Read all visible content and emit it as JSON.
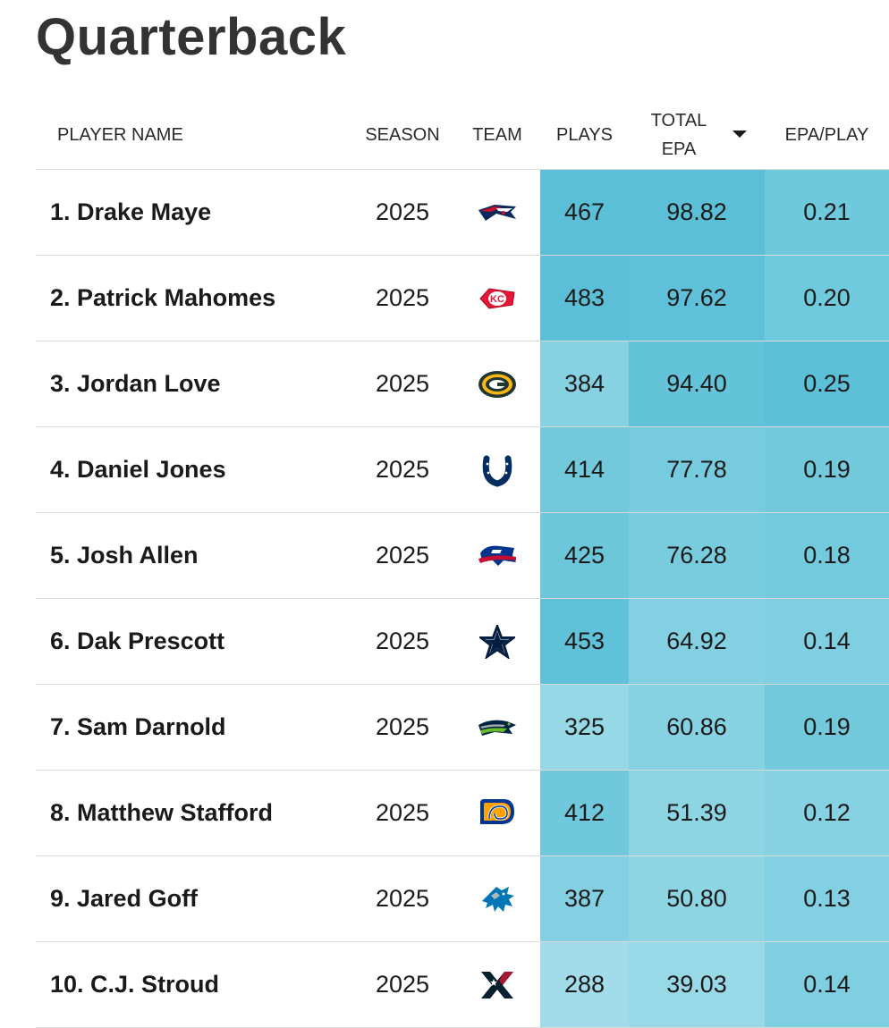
{
  "page_title": "Quarterback",
  "columns": {
    "player_name": "PLAYER NAME",
    "season": "SEASON",
    "team": "TEAM",
    "plays": "PLAYS",
    "total_epa_line1": "TOTAL",
    "total_epa_line2": "EPA",
    "epa_per_play": "EPA/PLAY"
  },
  "sort": {
    "column": "total_epa",
    "direction": "descending",
    "icon": "caret-down-icon"
  },
  "rows": [
    {
      "name": "1. Drake Maye",
      "season": "2025",
      "team_logo": "patriots-logo",
      "plays": "467",
      "total_epa": "98.82",
      "epa_per_play": "0.21",
      "colors": {
        "plays": "#5bbfd8",
        "total_epa": "#5bbfd8",
        "epa_per_play": "#6ec9dc"
      }
    },
    {
      "name": "2. Patrick Mahomes",
      "season": "2025",
      "team_logo": "chiefs-logo",
      "plays": "483",
      "total_epa": "97.62",
      "epa_per_play": "0.20",
      "colors": {
        "plays": "#5bbfd8",
        "total_epa": "#5ec1d9",
        "epa_per_play": "#6fcadd"
      }
    },
    {
      "name": "3. Jordan Love",
      "season": "2025",
      "team_logo": "packers-logo",
      "plays": "384",
      "total_epa": "94.40",
      "epa_per_play": "0.25",
      "colors": {
        "plays": "#86d2e2",
        "total_epa": "#62c3d9",
        "epa_per_play": "#5cc0d8"
      }
    },
    {
      "name": "4. Daniel Jones",
      "season": "2025",
      "team_logo": "colts-logo",
      "plays": "414",
      "total_epa": "77.78",
      "epa_per_play": "0.19",
      "colors": {
        "plays": "#72c9dc",
        "total_epa": "#76cbde",
        "epa_per_play": "#72c9dc"
      }
    },
    {
      "name": "5. Josh Allen",
      "season": "2025",
      "team_logo": "bills-logo",
      "plays": "425",
      "total_epa": "76.28",
      "epa_per_play": "0.18",
      "colors": {
        "plays": "#6cc7db",
        "total_epa": "#78ccde",
        "epa_per_play": "#74cadd"
      }
    },
    {
      "name": "6. Dak Prescott",
      "season": "2025",
      "team_logo": "cowboys-logo",
      "plays": "453",
      "total_epa": "64.92",
      "epa_per_play": "0.14",
      "colors": {
        "plays": "#60c2d9",
        "total_epa": "#82d0e1",
        "epa_per_play": "#80cfe0"
      }
    },
    {
      "name": "7. Sam Darnold",
      "season": "2025",
      "team_logo": "seahawks-logo",
      "plays": "325",
      "total_epa": "60.86",
      "epa_per_play": "0.19",
      "colors": {
        "plays": "#96d8e6",
        "total_epa": "#86d2e2",
        "epa_per_play": "#72c9dc"
      }
    },
    {
      "name": "8. Matthew Stafford",
      "season": "2025",
      "team_logo": "rams-logo",
      "plays": "412",
      "total_epa": "51.39",
      "epa_per_play": "0.12",
      "colors": {
        "plays": "#70c8dc",
        "total_epa": "#8ed5e4",
        "epa_per_play": "#86d2e2"
      }
    },
    {
      "name": "9. Jared Goff",
      "season": "2025",
      "team_logo": "lions-logo",
      "plays": "387",
      "total_epa": "50.80",
      "epa_per_play": "0.13",
      "colors": {
        "plays": "#82d0e1",
        "total_epa": "#8ed5e4",
        "epa_per_play": "#82d0e1"
      }
    },
    {
      "name": "10. C.J. Stroud",
      "season": "2025",
      "team_logo": "texans-logo",
      "plays": "288",
      "total_epa": "39.03",
      "epa_per_play": "0.14",
      "colors": {
        "plays": "#a2dcea",
        "total_epa": "#98d9e7",
        "epa_per_play": "#80cfe0"
      }
    }
  ]
}
